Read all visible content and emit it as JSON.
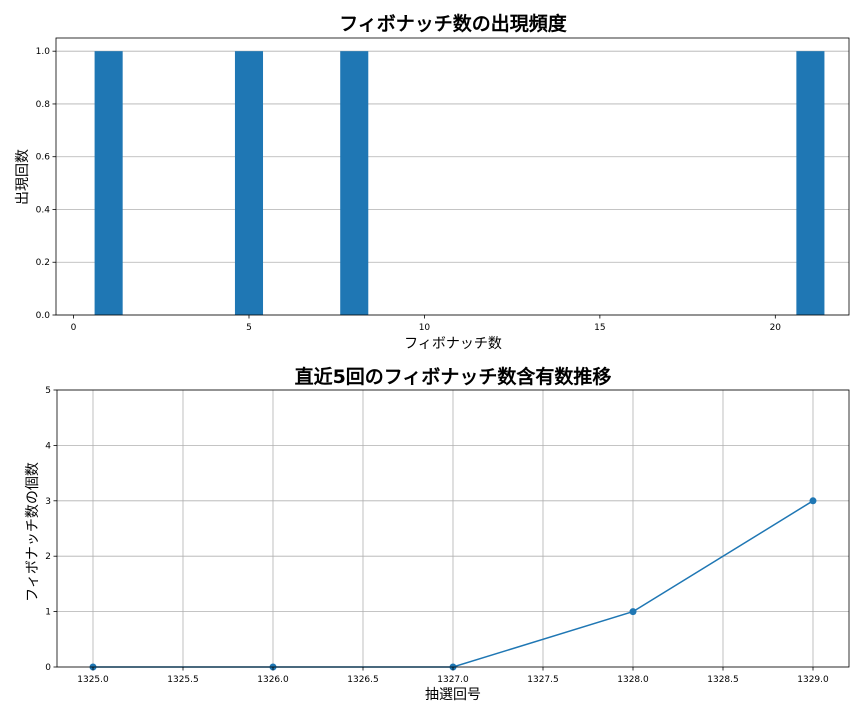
{
  "chart_data": [
    {
      "type": "bar",
      "title": "フィボナッチ数の出現頻度",
      "xlabel": "フィボナッチ数",
      "ylabel": "出現回数",
      "x": [
        1,
        5,
        8,
        21
      ],
      "values": [
        1.0,
        1.0,
        1.0,
        1.0
      ],
      "xlim": [
        -0.5,
        22.1
      ],
      "ylim": [
        0,
        1.05
      ],
      "xticks": [
        "0",
        "5",
        "10",
        "15",
        "20"
      ],
      "yticks": [
        "0.0",
        "0.2",
        "0.4",
        "0.6",
        "0.8",
        "1.0"
      ],
      "bar_width": 0.8,
      "color": "#1f77b4",
      "grid": "y"
    },
    {
      "type": "line",
      "title": "直近5回のフィボナッチ数含有数推移",
      "xlabel": "抽選回号",
      "ylabel": "フィボナッチ数の個数",
      "x": [
        1325,
        1326,
        1327,
        1328,
        1329
      ],
      "values": [
        0,
        0,
        0,
        1,
        3
      ],
      "xlim": [
        1324.8,
        1329.2
      ],
      "ylim": [
        0,
        5
      ],
      "xticks": [
        "1325.0",
        "1325.5",
        "1326.0",
        "1326.5",
        "1327.0",
        "1327.5",
        "1328.0",
        "1328.5",
        "1329.0"
      ],
      "yticks": [
        "0",
        "1",
        "2",
        "3",
        "4",
        "5"
      ],
      "color": "#1f77b4",
      "marker": "circle",
      "grid": "both"
    }
  ]
}
